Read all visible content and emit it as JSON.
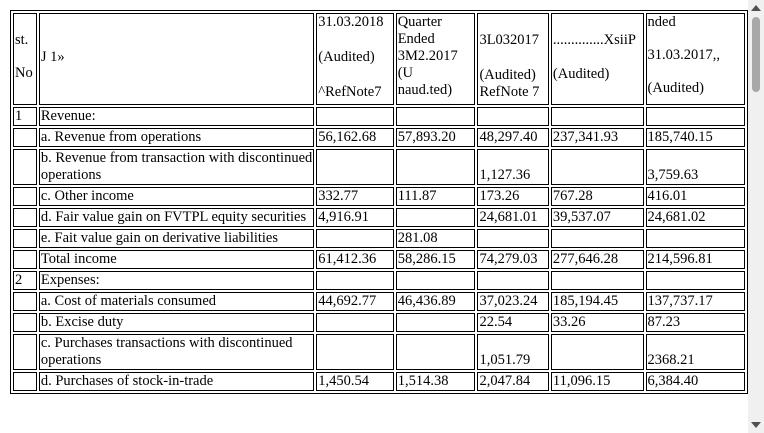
{
  "header": {
    "col_no": [
      "st.",
      "No"
    ],
    "col_particulars": "J 1»",
    "col_q1": [
      "31.03.2018",
      "(Audited)",
      "^RefNote7"
    ],
    "col_q2": [
      "Quarter Ended",
      "3M2.2017",
      "(U naud.ted)"
    ],
    "col_q3": [
      "3L032017",
      "(Audited)",
      "RefNote 7"
    ],
    "col_y1": [
      "..............XsiiP",
      "(Audited)"
    ],
    "col_y2": [
      "nded",
      "31.03.2017,,",
      "(Audited)"
    ]
  },
  "rows": [
    {
      "no": "1",
      "label": "Revenue:",
      "v": [
        "",
        "",
        "",
        "",
        ""
      ]
    },
    {
      "no": "",
      "label": "a. Revenue from operations",
      "v": [
        "56,162.68",
        "57,893.20",
        "48,297.40",
        "237,341.93",
        "185,740.15"
      ]
    },
    {
      "no": "",
      "label": "b. Revenue from transaction with discontinued operations",
      "v": [
        "",
        "",
        "1,127.36",
        "",
        "3,759.63"
      ]
    },
    {
      "no": "",
      "label": "c. Other income",
      "v": [
        "332.77",
        "111.87",
        "173.26",
        "767.28",
        "416.01"
      ]
    },
    {
      "no": "",
      "label": "d. Fair value gain on FVTPL equity securities",
      "v": [
        "4,916.91",
        "",
        "24,681.01",
        "39,537.07",
        "24,681.02"
      ]
    },
    {
      "no": "",
      "label": "e. Fait value gain on derivative liabilities",
      "v": [
        "",
        "281.08",
        "",
        "",
        ""
      ]
    },
    {
      "no": "",
      "label": "Total income",
      "v": [
        "61,412.36",
        "58,286.15",
        "74,279.03",
        "277,646.28",
        "214,596.81"
      ]
    },
    {
      "no": "2",
      "label": "Expenses:",
      "v": [
        "",
        "",
        "",
        "",
        ""
      ]
    },
    {
      "no": "",
      "label": "a. Cost of materials consumed",
      "v": [
        "44,692.77",
        "46,436.89",
        "37,023.24",
        "185,194.45",
        "137,737.17"
      ]
    },
    {
      "no": "",
      "label": "b. Excise duty",
      "v": [
        "",
        "",
        "22.54",
        "33.26",
        "87.23"
      ]
    },
    {
      "no": "",
      "label": "c. Purchases transactions with discontinued operations",
      "v": [
        "",
        "",
        "1,051.79",
        "",
        "2368.21"
      ]
    },
    {
      "no": "",
      "label": "d. Purchases of stock-in-trade",
      "v": [
        "1,450.54",
        "1,514.38",
        "2,047.84",
        "11,096.15",
        "6,384.40"
      ]
    }
  ]
}
